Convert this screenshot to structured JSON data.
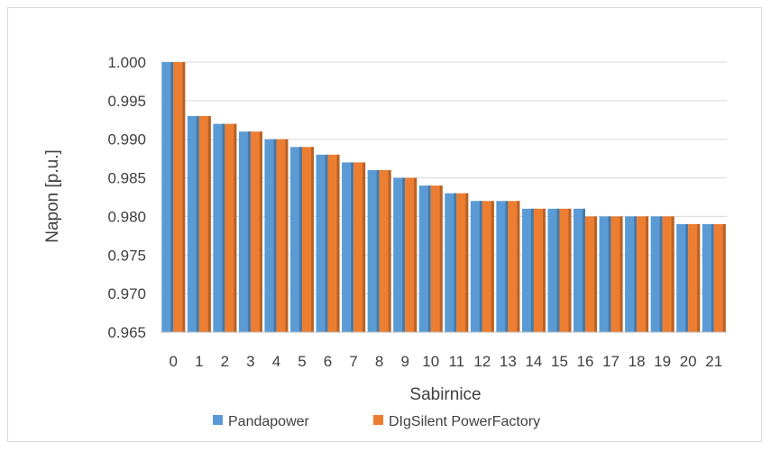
{
  "chart_data": {
    "type": "bar",
    "title": "",
    "xlabel": "Sabirnice",
    "ylabel": "Napon [p.u.]",
    "ylim": [
      0.965,
      1.0
    ],
    "ytick_step": 0.005,
    "yticks": [
      "0.965",
      "0.970",
      "0.975",
      "0.980",
      "0.985",
      "0.990",
      "0.995",
      "1.000"
    ],
    "grid": true,
    "legend_position": "bottom",
    "categories": [
      "0",
      "1",
      "2",
      "3",
      "4",
      "5",
      "6",
      "7",
      "8",
      "9",
      "10",
      "11",
      "12",
      "13",
      "14",
      "15",
      "16",
      "17",
      "18",
      "19",
      "20",
      "21"
    ],
    "series": [
      {
        "name": "Pandapower",
        "color": "#5b9bd5",
        "values": [
          1.0,
          0.993,
          0.992,
          0.991,
          0.99,
          0.989,
          0.988,
          0.987,
          0.986,
          0.985,
          0.984,
          0.983,
          0.982,
          0.982,
          0.981,
          0.981,
          0.981,
          0.98,
          0.98,
          0.98,
          0.979,
          0.979
        ]
      },
      {
        "name": "DIgSilent PowerFactory",
        "color": "#ed7d31",
        "values": [
          1.0,
          0.993,
          0.992,
          0.991,
          0.99,
          0.989,
          0.988,
          0.987,
          0.986,
          0.985,
          0.984,
          0.983,
          0.982,
          0.982,
          0.981,
          0.981,
          0.98,
          0.98,
          0.98,
          0.98,
          0.979,
          0.979
        ]
      }
    ]
  }
}
